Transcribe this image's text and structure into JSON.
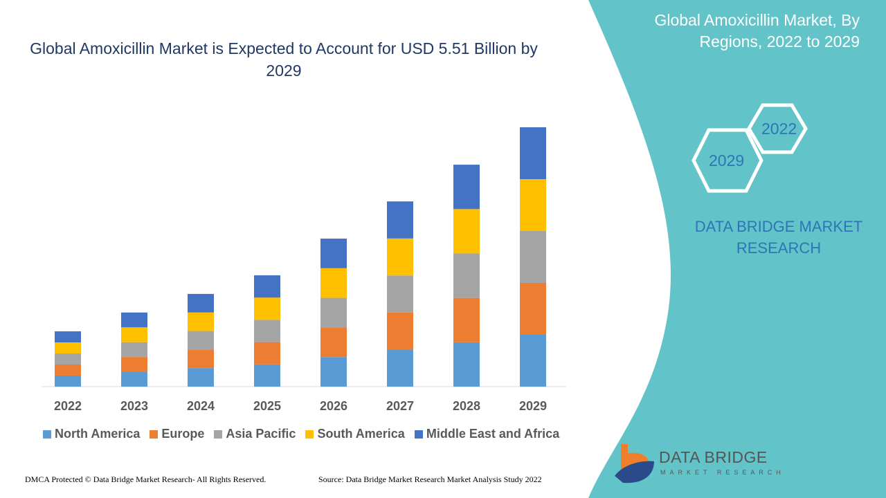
{
  "title": "Global Amoxicillin Market is Expected to Account for USD 5.51 Billion by 2029",
  "side_panel": {
    "title": "Global Amoxicillin Market, By Regions, 2022 to 2029",
    "hex_start": "2022",
    "hex_end": "2029",
    "brand": "DATA BRIDGE MARKET RESEARCH",
    "panel_color": "#62C4C8"
  },
  "logo": {
    "name": "DATA BRIDGE",
    "tagline": "MARKET RESEARCH"
  },
  "footer": {
    "copyright": "DMCA Protected © Data Bridge Market Research- All Rights Reserved.",
    "source": "Source: Data Bridge Market Research Market Analysis Study 2022"
  },
  "chart_data": {
    "type": "bar",
    "stacked": true,
    "title": "Global Amoxicillin Market is Expected to Account for USD 5.51 Billion by 2029",
    "xlabel": "",
    "ylabel": "",
    "ylim": [
      0,
      5.51
    ],
    "grid": false,
    "legend_position": "bottom",
    "categories": [
      "2022",
      "2023",
      "2024",
      "2025",
      "2026",
      "2027",
      "2028",
      "2029"
    ],
    "series": [
      {
        "name": "North America",
        "color": "#5B9BD5",
        "values": [
          0.235,
          0.315,
          0.394,
          0.473,
          0.629,
          0.787,
          0.943,
          1.102
        ]
      },
      {
        "name": "Europe",
        "color": "#ED7D31",
        "values": [
          0.235,
          0.315,
          0.394,
          0.473,
          0.629,
          0.787,
          0.943,
          1.102
        ]
      },
      {
        "name": "Asia Pacific",
        "color": "#A5A5A5",
        "values": [
          0.235,
          0.315,
          0.394,
          0.473,
          0.629,
          0.787,
          0.943,
          1.102
        ]
      },
      {
        "name": "South America",
        "color": "#FFC000",
        "values": [
          0.235,
          0.315,
          0.394,
          0.473,
          0.629,
          0.787,
          0.943,
          1.102
        ]
      },
      {
        "name": "Middle East and Africa",
        "color": "#4472C4",
        "values": [
          0.235,
          0.315,
          0.394,
          0.473,
          0.629,
          0.787,
          0.943,
          1.102
        ]
      }
    ]
  }
}
